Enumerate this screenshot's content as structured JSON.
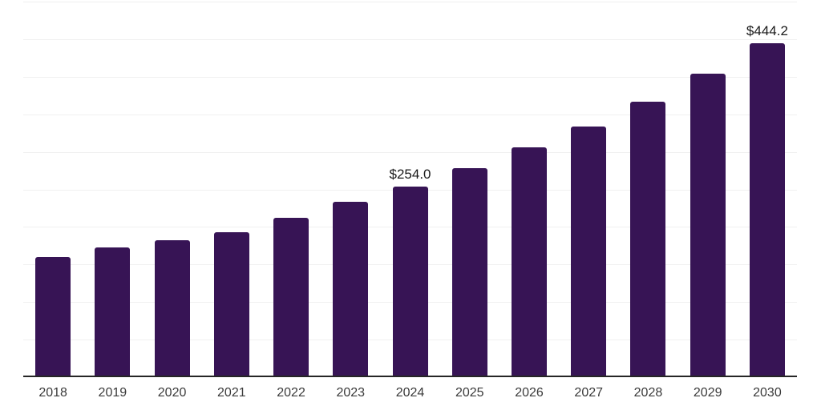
{
  "chart_data": {
    "type": "bar",
    "title": "",
    "xlabel": "",
    "ylabel": "",
    "categories": [
      "2018",
      "2019",
      "2020",
      "2021",
      "2022",
      "2023",
      "2024",
      "2025",
      "2026",
      "2027",
      "2028",
      "2029",
      "2030"
    ],
    "values": [
      159.5,
      172.5,
      182.0,
      193.0,
      212.5,
      233.0,
      254.0,
      278.5,
      306.0,
      334.0,
      367.0,
      404.0,
      444.2
    ],
    "data_labels": [
      "",
      "",
      "",
      "",
      "",
      "",
      "$254.0",
      "",
      "",
      "",
      "",
      "",
      "$444.2"
    ],
    "ylim": [
      0,
      500
    ],
    "grid_step": 50,
    "grid": "horizontal-only",
    "legend": "none",
    "y_tick_labels_visible": false,
    "colors": {
      "bar": "#371455",
      "background": "#ffffff",
      "gridline": "#f0f0f0",
      "axis_line": "#262626",
      "tick_label": "#3a3a3a",
      "data_label": "#1a1a1a"
    }
  }
}
